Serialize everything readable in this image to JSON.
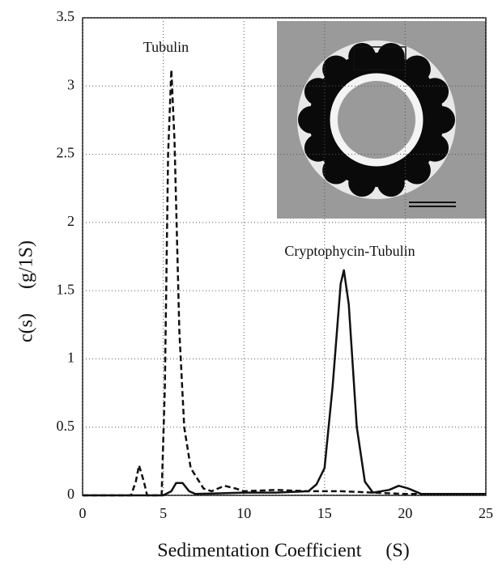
{
  "chart_data": {
    "type": "line",
    "xlabel": "Sedimentation Coefficient     (S)",
    "ylabel": "c(s)     (g/1S)",
    "xlim": [
      0,
      25
    ],
    "ylim": [
      0,
      3.5
    ],
    "xticks": [
      0,
      5,
      10,
      15,
      20,
      25
    ],
    "yticks": [
      0,
      0.5,
      1,
      1.5,
      2,
      2.5,
      3,
      3.5
    ],
    "grid": true,
    "series": [
      {
        "name": "Tubulin",
        "color": "#111111",
        "dash": true,
        "x": [
          0,
          3,
          3.3,
          3.5,
          3.8,
          4.0,
          4.9,
          5.1,
          5.3,
          5.5,
          5.7,
          6.0,
          6.3,
          6.7,
          7.5,
          8,
          8.8,
          9.5,
          10,
          12,
          14,
          16,
          18,
          20,
          25
        ],
        "values": [
          0,
          0,
          0.1,
          0.22,
          0.1,
          0,
          0,
          0.8,
          2.5,
          3.12,
          2.6,
          1.2,
          0.5,
          0.2,
          0.05,
          0.03,
          0.07,
          0.05,
          0.03,
          0.04,
          0.03,
          0.03,
          0.02,
          0.01,
          0.01
        ]
      },
      {
        "name": "Cryptophycin-Tubulin",
        "color": "#111111",
        "dash": false,
        "x": [
          0,
          5,
          5.5,
          5.8,
          6.2,
          6.6,
          7,
          10,
          12,
          14,
          14.5,
          15,
          15.5,
          16,
          16.2,
          16.5,
          17,
          17.5,
          18,
          19,
          19.6,
          20.2,
          21,
          25
        ],
        "values": [
          0,
          0,
          0.03,
          0.09,
          0.09,
          0.03,
          0.01,
          0.02,
          0.02,
          0.03,
          0.08,
          0.2,
          0.8,
          1.55,
          1.65,
          1.4,
          0.5,
          0.1,
          0.02,
          0.04,
          0.07,
          0.05,
          0.01,
          0.01
        ]
      }
    ]
  }
}
